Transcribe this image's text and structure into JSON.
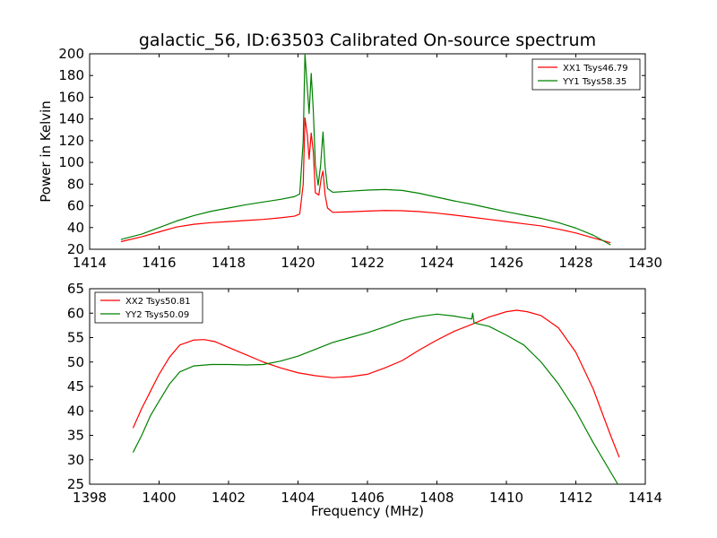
{
  "chart_data": [
    {
      "type": "line",
      "title": "galactic_56, ID:63503 Calibrated On-source spectrum",
      "xlabel": "",
      "ylabel": "Power in Kelvin",
      "xlim": [
        1414,
        1430
      ],
      "ylim": [
        20,
        200
      ],
      "xticks": [
        1414,
        1416,
        1418,
        1420,
        1422,
        1424,
        1426,
        1428,
        1430
      ],
      "yticks": [
        20,
        40,
        60,
        80,
        100,
        120,
        140,
        160,
        180,
        200
      ],
      "legend_position": "top-right",
      "grid": false,
      "series": [
        {
          "name": "XX1 Tsys46.79",
          "color": "#ff0000",
          "points": [
            [
              1414.9,
              27
            ],
            [
              1415.5,
              31.5
            ],
            [
              1416,
              36
            ],
            [
              1416.5,
              40.5
            ],
            [
              1417,
              43
            ],
            [
              1417.5,
              44.5
            ],
            [
              1418,
              45.5
            ],
            [
              1418.5,
              46.5
            ],
            [
              1419,
              47.5
            ],
            [
              1419.5,
              49
            ],
            [
              1419.9,
              50.5
            ],
            [
              1420.05,
              52.5
            ],
            [
              1420.15,
              80
            ],
            [
              1420.2,
              141
            ],
            [
              1420.27,
              125
            ],
            [
              1420.32,
              103
            ],
            [
              1420.38,
              127
            ],
            [
              1420.44,
              110
            ],
            [
              1420.5,
              72
            ],
            [
              1420.6,
              70
            ],
            [
              1420.67,
              86
            ],
            [
              1420.72,
              92
            ],
            [
              1420.78,
              70
            ],
            [
              1420.85,
              58
            ],
            [
              1421,
              54
            ],
            [
              1421.5,
              54.5
            ],
            [
              1422,
              55.2
            ],
            [
              1422.5,
              55.7
            ],
            [
              1423,
              55.5
            ],
            [
              1423.5,
              54.7
            ],
            [
              1424,
              53.3
            ],
            [
              1424.5,
              51.5
            ],
            [
              1425,
              49.5
            ],
            [
              1425.5,
              47.5
            ],
            [
              1426,
              45.5
            ],
            [
              1426.5,
              43.5
            ],
            [
              1427,
              41.5
            ],
            [
              1427.5,
              38.5
            ],
            [
              1428,
              35
            ],
            [
              1428.5,
              30.5
            ],
            [
              1429,
              26
            ]
          ]
        },
        {
          "name": "YY1 Tsys58.35",
          "color": "#008000",
          "points": [
            [
              1414.9,
              29
            ],
            [
              1415.5,
              34
            ],
            [
              1416,
              40
            ],
            [
              1416.5,
              46
            ],
            [
              1417,
              51
            ],
            [
              1417.5,
              55
            ],
            [
              1418,
              58
            ],
            [
              1418.5,
              61
            ],
            [
              1419,
              63.5
            ],
            [
              1419.5,
              66
            ],
            [
              1419.9,
              68.5
            ],
            [
              1420.05,
              71
            ],
            [
              1420.15,
              120
            ],
            [
              1420.2,
              200
            ],
            [
              1420.27,
              168
            ],
            [
              1420.32,
              145
            ],
            [
              1420.38,
              182
            ],
            [
              1420.44,
              148
            ],
            [
              1420.5,
              98
            ],
            [
              1420.58,
              79
            ],
            [
              1420.65,
              97
            ],
            [
              1420.72,
              128
            ],
            [
              1420.78,
              96
            ],
            [
              1420.85,
              76
            ],
            [
              1421,
              72.5
            ],
            [
              1421.5,
              73.5
            ],
            [
              1422,
              74.5
            ],
            [
              1422.5,
              75
            ],
            [
              1423,
              74.2
            ],
            [
              1423.5,
              71.5
            ],
            [
              1424,
              68
            ],
            [
              1424.5,
              64.5
            ],
            [
              1425,
              61.5
            ],
            [
              1425.5,
              58
            ],
            [
              1426,
              54.5
            ],
            [
              1426.5,
              51.5
            ],
            [
              1427,
              48.5
            ],
            [
              1427.5,
              44.5
            ],
            [
              1428,
              39.5
            ],
            [
              1428.5,
              33
            ],
            [
              1429,
              24
            ]
          ]
        }
      ]
    },
    {
      "type": "line",
      "title": "",
      "xlabel": "Frequency (MHz)",
      "ylabel": "",
      "xlim": [
        1398,
        1414
      ],
      "ylim": [
        25,
        65
      ],
      "xticks": [
        1398,
        1400,
        1402,
        1404,
        1406,
        1408,
        1410,
        1412,
        1414
      ],
      "yticks": [
        25,
        30,
        35,
        40,
        45,
        50,
        55,
        60,
        65
      ],
      "legend_position": "top-left",
      "grid": false,
      "series": [
        {
          "name": "XX2 Tsys50.81",
          "color": "#ff0000",
          "points": [
            [
              1399.25,
              36.5
            ],
            [
              1399.5,
              40.5
            ],
            [
              1399.75,
              44
            ],
            [
              1400,
              47.5
            ],
            [
              1400.3,
              51
            ],
            [
              1400.6,
              53.5
            ],
            [
              1401,
              54.5
            ],
            [
              1401.3,
              54.6
            ],
            [
              1401.6,
              54.2
            ],
            [
              1402,
              53
            ],
            [
              1402.5,
              51.5
            ],
            [
              1403,
              50
            ],
            [
              1403.5,
              48.8
            ],
            [
              1404,
              47.8
            ],
            [
              1404.5,
              47.2
            ],
            [
              1405,
              46.8
            ],
            [
              1405.5,
              47
            ],
            [
              1406,
              47.5
            ],
            [
              1406.5,
              48.8
            ],
            [
              1407,
              50.3
            ],
            [
              1407.5,
              52.5
            ],
            [
              1408,
              54.5
            ],
            [
              1408.5,
              56.3
            ],
            [
              1409,
              57.7
            ],
            [
              1409.5,
              59.2
            ],
            [
              1410,
              60.3
            ],
            [
              1410.3,
              60.6
            ],
            [
              1410.6,
              60.3
            ],
            [
              1411,
              59.5
            ],
            [
              1411.5,
              57
            ],
            [
              1412,
              52
            ],
            [
              1412.5,
              44.5
            ],
            [
              1413,
              35
            ],
            [
              1413.25,
              30.5
            ]
          ]
        },
        {
          "name": "YY2 Tsys50.09",
          "color": "#008000",
          "points": [
            [
              1399.25,
              31.5
            ],
            [
              1399.5,
              35
            ],
            [
              1399.75,
              39
            ],
            [
              1400,
              42
            ],
            [
              1400.3,
              45.5
            ],
            [
              1400.6,
              48
            ],
            [
              1401,
              49.2
            ],
            [
              1401.5,
              49.5
            ],
            [
              1402,
              49.5
            ],
            [
              1402.5,
              49.4
            ],
            [
              1403,
              49.5
            ],
            [
              1403.5,
              50.2
            ],
            [
              1404,
              51.2
            ],
            [
              1404.5,
              52.6
            ],
            [
              1405,
              54
            ],
            [
              1405.5,
              55
            ],
            [
              1406,
              56
            ],
            [
              1406.5,
              57.2
            ],
            [
              1407,
              58.5
            ],
            [
              1407.5,
              59.3
            ],
            [
              1408,
              59.8
            ],
            [
              1408.5,
              59.4
            ],
            [
              1409,
              58.8
            ],
            [
              1409.03,
              60
            ],
            [
              1409.07,
              58
            ],
            [
              1409.5,
              57.3
            ],
            [
              1410,
              55.5
            ],
            [
              1410.5,
              53.5
            ],
            [
              1411,
              50
            ],
            [
              1411.5,
              45.5
            ],
            [
              1412,
              40
            ],
            [
              1412.5,
              33.5
            ],
            [
              1413,
              27.5
            ],
            [
              1413.25,
              24.5
            ]
          ]
        }
      ]
    }
  ]
}
